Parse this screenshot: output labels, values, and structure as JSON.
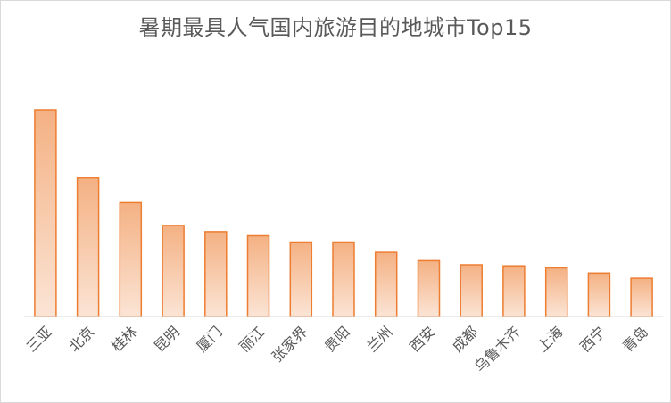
{
  "chart_data": {
    "type": "bar",
    "title": "暑期最具人气国内旅游目的地城市Top15",
    "xlabel": "",
    "ylabel": "",
    "categories": [
      "三亚",
      "北京",
      "桂林",
      "昆明",
      "厦门",
      "丽江",
      "张家界",
      "贵阳",
      "兰州",
      "西安",
      "成都",
      "乌鲁木齐",
      "上海",
      "西宁",
      "青岛"
    ],
    "values": [
      100,
      67,
      55,
      44,
      41,
      39,
      36,
      36,
      31,
      27,
      25,
      24.5,
      23.5,
      21,
      18.5
    ],
    "ylim": [
      0,
      100
    ],
    "grid": false,
    "legend": "none",
    "bar_fill_top": "#f4b183",
    "bar_fill_bottom": "#fbe4d5",
    "bar_stroke": "#ed7d31",
    "axis_color": "#d9d9d9"
  }
}
